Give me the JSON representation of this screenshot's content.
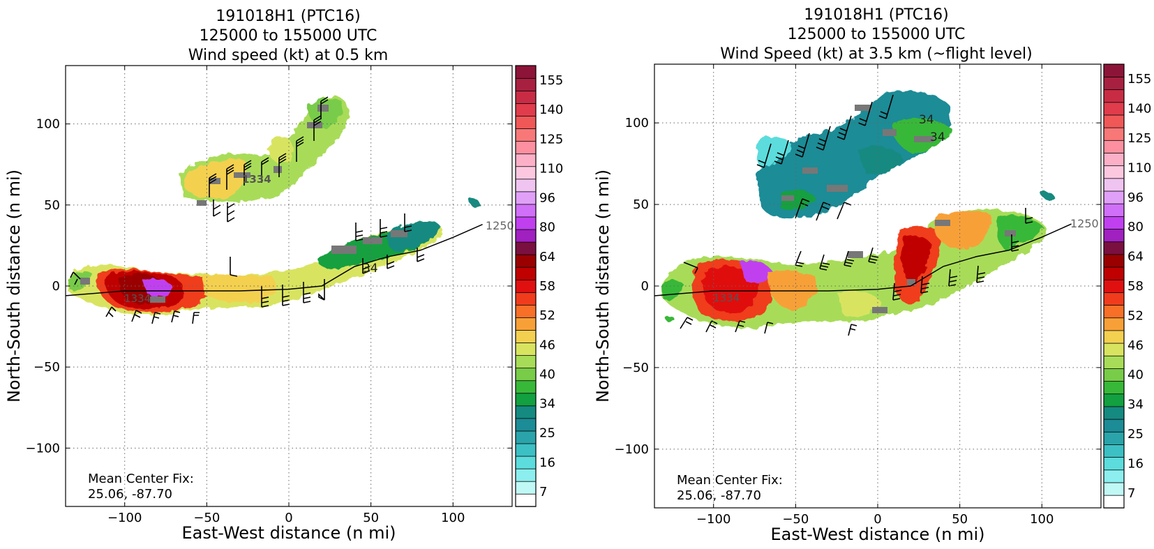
{
  "panels": [
    {
      "title_lines": [
        "191018H1 (PTC16)",
        "125000 to 155000 UTC",
        "Wind speed (kt) at 0.5 km"
      ],
      "xlabel": "East-West distance (n mi)",
      "ylabel": "North-South distance (n mi)",
      "xlim": [
        -136,
        136
      ],
      "ylim": [
        -136,
        136
      ],
      "xticks": [
        -100,
        -50,
        0,
        50,
        100
      ],
      "yticks": [
        -100,
        -50,
        0,
        50,
        100
      ],
      "grid": true,
      "annotation_lines": [
        "Mean Center Fix:",
        "25.06, -87.70"
      ],
      "track_label_east": "1250",
      "track_label_west": "1334",
      "track_label_north": "1334",
      "contour_label": "34"
    },
    {
      "title_lines": [
        "191018H1 (PTC16)",
        "125000 to 155000 UTC",
        "Wind Speed (kt) at 3.5 km (~flight level)"
      ],
      "xlabel": "East-West distance (n mi)",
      "ylabel": "North-South distance (n mi)",
      "xlim": [
        -136,
        136
      ],
      "ylim": [
        -136,
        136
      ],
      "xticks": [
        -100,
        -50,
        0,
        50,
        100
      ],
      "yticks": [
        -100,
        -50,
        0,
        50,
        100
      ],
      "grid": true,
      "annotation_lines": [
        "Mean Center Fix:",
        "25.06, -87.70"
      ],
      "track_label_east": "1250",
      "track_label_west": "1334",
      "contour_label": "34"
    }
  ],
  "colorbar": {
    "tick_labels": [
      "7",
      "16",
      "25",
      "34",
      "40",
      "46",
      "52",
      "58",
      "64",
      "80",
      "96",
      "110",
      "125",
      "140",
      "155"
    ],
    "colors": [
      "#ffffff",
      "#c0f8f6",
      "#8ceeee",
      "#5cdcdc",
      "#3cc0c4",
      "#2aa4aa",
      "#1c8c96",
      "#158a80",
      "#12a040",
      "#38b838",
      "#78cc48",
      "#a8dc58",
      "#d8e460",
      "#f4d050",
      "#f8a038",
      "#f87028",
      "#f03c1c",
      "#e01010",
      "#c00000",
      "#9a0000",
      "#7a1040",
      "#a020c0",
      "#c040f0",
      "#d070f8",
      "#e0a0f8",
      "#f0c4f0",
      "#fcc8e0",
      "#fcb0c8",
      "#fc90a0",
      "#f87878",
      "#f05858",
      "#e03c4c",
      "#c82c44",
      "#a82040",
      "#8c1438"
    ]
  },
  "chart_data": [
    {
      "type": "heatmap",
      "title": "191018H1 (PTC16) 125000 to 155000 UTC Wind speed (kt) at 0.5 km",
      "xlabel": "East-West distance (n mi)",
      "ylabel": "North-South distance (n mi)",
      "xlim": [
        -136,
        136
      ],
      "ylim": [
        -136,
        136
      ],
      "color_scale_kt": [
        7,
        16,
        25,
        34,
        40,
        46,
        52,
        58,
        64,
        80,
        96,
        110,
        125,
        140,
        155
      ],
      "track": {
        "x": [
          -136,
          -100,
          -80,
          -60,
          -30,
          0,
          20,
          40,
          60,
          80,
          100,
          118
        ],
        "y": [
          -6,
          -3,
          -3,
          -3,
          -3,
          -2,
          0,
          12,
          18,
          22,
          30,
          38
        ]
      },
      "wind_regions": [
        {
          "name": "north band",
          "points": [
            {
              "x": -55,
              "y": 65,
              "kt": 46
            },
            {
              "x": -30,
              "y": 70,
              "kt": 44
            },
            {
              "x": 0,
              "y": 70,
              "kt": 42
            },
            {
              "x": 20,
              "y": 95,
              "kt": 38
            },
            {
              "x": 30,
              "y": 110,
              "kt": 34
            }
          ]
        },
        {
          "name": "south band",
          "points": [
            {
              "x": -130,
              "y": 0,
              "kt": 38
            },
            {
              "x": -100,
              "y": -5,
              "kt": 58
            },
            {
              "x": -80,
              "y": -8,
              "kt": 70
            },
            {
              "x": -60,
              "y": -5,
              "kt": 58
            },
            {
              "x": -40,
              "y": -3,
              "kt": 50
            },
            {
              "x": 0,
              "y": 0,
              "kt": 44
            },
            {
              "x": 40,
              "y": 15,
              "kt": 34
            },
            {
              "x": 80,
              "y": 30,
              "kt": 25
            }
          ]
        }
      ]
    },
    {
      "type": "heatmap",
      "title": "191018H1 (PTC16) 125000 to 155000 UTC Wind Speed (kt) at 3.5 km (~flight level)",
      "xlabel": "East-West distance (n mi)",
      "ylabel": "North-South distance (n mi)",
      "xlim": [
        -136,
        136
      ],
      "ylim": [
        -136,
        136
      ],
      "color_scale_kt": [
        7,
        16,
        25,
        34,
        40,
        46,
        52,
        58,
        64,
        80,
        96,
        110,
        125,
        140,
        155
      ],
      "track": {
        "x": [
          -136,
          -100,
          -80,
          -60,
          -30,
          0,
          20,
          40,
          60,
          80,
          100,
          118
        ],
        "y": [
          -6,
          -3,
          -3,
          -3,
          -3,
          -2,
          0,
          12,
          18,
          22,
          30,
          38
        ]
      },
      "wind_regions": [
        {
          "name": "north band",
          "points": [
            {
              "x": -50,
              "y": 70,
              "kt": 22
            },
            {
              "x": -20,
              "y": 75,
              "kt": 27
            },
            {
              "x": 0,
              "y": 90,
              "kt": 30
            },
            {
              "x": 30,
              "y": 95,
              "kt": 34
            }
          ]
        },
        {
          "name": "south band",
          "points": [
            {
              "x": -110,
              "y": -2,
              "kt": 40
            },
            {
              "x": -90,
              "y": -5,
              "kt": 62
            },
            {
              "x": -75,
              "y": -3,
              "kt": 80
            },
            {
              "x": -55,
              "y": -5,
              "kt": 56
            },
            {
              "x": -20,
              "y": 5,
              "kt": 42
            },
            {
              "x": 10,
              "y": 5,
              "kt": 44
            },
            {
              "x": 30,
              "y": 15,
              "kt": 55
            },
            {
              "x": 60,
              "y": 30,
              "kt": 46
            },
            {
              "x": 90,
              "y": 30,
              "kt": 38
            }
          ]
        }
      ]
    }
  ]
}
